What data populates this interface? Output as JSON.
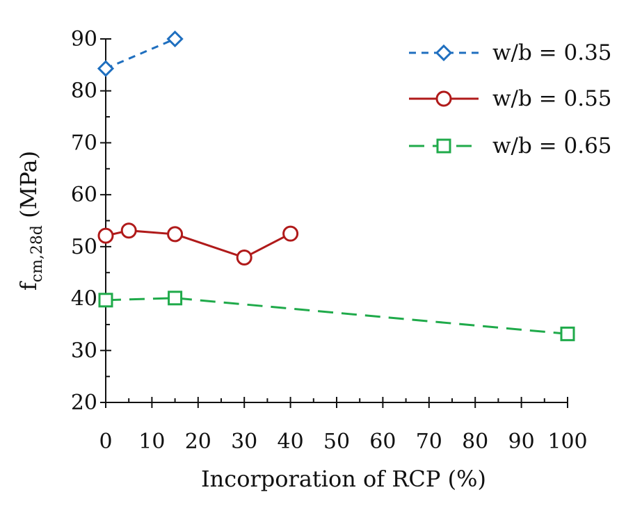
{
  "chart_data": {
    "type": "line",
    "xlabel": "Incorporation of RCP (%)",
    "ylabel": {
      "main": "f",
      "subscript": "cm,28d",
      "unit": " (MPa)"
    },
    "xlim": [
      0,
      100
    ],
    "ylim": [
      20,
      90
    ],
    "xticks": [
      0,
      10,
      20,
      30,
      40,
      50,
      60,
      70,
      80,
      90,
      100
    ],
    "yticks": [
      20,
      30,
      40,
      50,
      60,
      70,
      80,
      90
    ],
    "legend_position": "top-right",
    "grid": false,
    "series": [
      {
        "name": "w/b = 0.35",
        "marker": "diamond",
        "dash": "short-dash",
        "color": "#1f6fbf",
        "x": [
          0,
          15
        ],
        "y": [
          84.3,
          90.0
        ]
      },
      {
        "name": "w/b = 0.55",
        "marker": "circle",
        "dash": "solid",
        "color": "#b01a1a",
        "x": [
          0,
          5,
          15,
          30,
          40
        ],
        "y": [
          52.1,
          53.1,
          52.4,
          47.9,
          52.5
        ]
      },
      {
        "name": "w/b = 0.65",
        "marker": "square",
        "dash": "long-dash",
        "color": "#1faa4a",
        "x": [
          0,
          15,
          100
        ],
        "y": [
          39.7,
          40.1,
          33.2
        ]
      }
    ]
  }
}
